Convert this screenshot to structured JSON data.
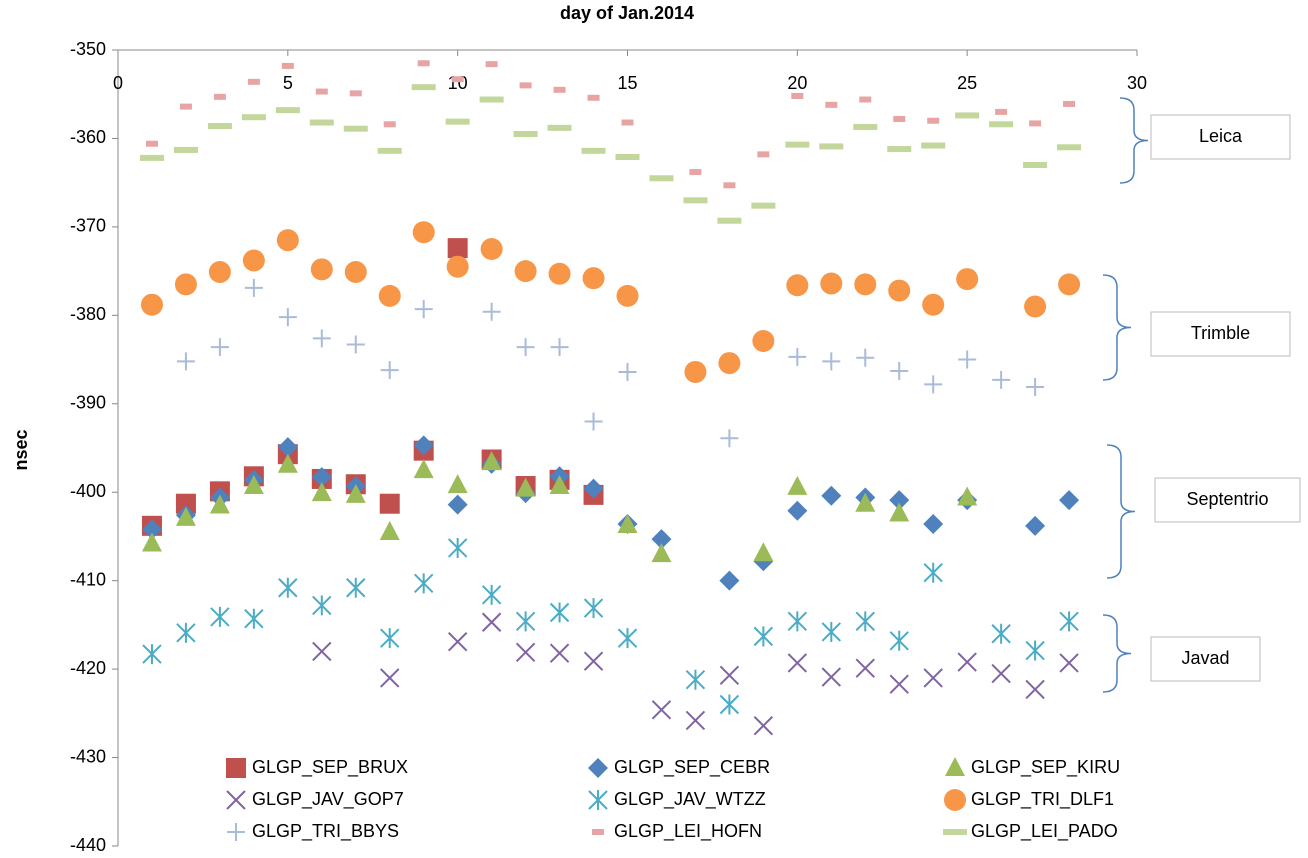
{
  "chart_data": {
    "type": "scatter",
    "title": "day of Jan.2014",
    "y_label": "nsec",
    "x": [
      1,
      2,
      3,
      4,
      5,
      6,
      7,
      8,
      9,
      10,
      11,
      12,
      13,
      14,
      15,
      16,
      17,
      18,
      19,
      20,
      21,
      22,
      23,
      24,
      25,
      26,
      27,
      28
    ],
    "xlim": [
      0,
      30
    ],
    "xticks": [
      0,
      5,
      10,
      15,
      20,
      25,
      30
    ],
    "ylim": [
      -440,
      -350
    ],
    "yticks": [
      -440,
      -430,
      -420,
      -410,
      -400,
      -390,
      -380,
      -370,
      -360,
      -350
    ],
    "grid": false,
    "legend": "bottom",
    "series": [
      {
        "name": "GLGP_SEP_BRUX",
        "color": "#c0504d",
        "marker": "square",
        "values": [
          -403.8,
          -401.3,
          -399.9,
          -398.2,
          -395.7,
          -398.5,
          -399.1,
          -401.3,
          -395.3,
          -372.4,
          -396.3,
          -399.3,
          -398.6,
          -400.3,
          null,
          null,
          null,
          null,
          null,
          null,
          null,
          null,
          null,
          null,
          null,
          null,
          null,
          null
        ]
      },
      {
        "name": "GLGP_SEP_CEBR",
        "color": "#4f81bd",
        "marker": "diamond",
        "values": [
          -404.2,
          -402.6,
          -400.6,
          -398.6,
          -394.9,
          -398.3,
          -399.3,
          null,
          -394.7,
          -401.4,
          -396.8,
          -400.1,
          -398.2,
          -399.6,
          -403.6,
          -405.3,
          null,
          -410.0,
          -407.8,
          -402.1,
          -400.4,
          -400.6,
          -400.9,
          -403.6,
          -400.9,
          null,
          -403.8,
          -400.9
        ]
      },
      {
        "name": "GLGP_SEP_KIRU",
        "color": "#9bbb59",
        "marker": "triangle",
        "values": [
          -405.8,
          -402.9,
          -401.5,
          -399.3,
          -396.9,
          -400.1,
          -400.3,
          -404.5,
          -397.5,
          -399.2,
          -396.6,
          -399.6,
          -399.3,
          null,
          -403.7,
          -407.0,
          null,
          null,
          -406.9,
          -399.4,
          null,
          -401.3,
          -402.4,
          null,
          -400.6,
          null,
          null,
          null
        ]
      },
      {
        "name": "GLGP_JAV_GOP7",
        "color": "#8064a2",
        "marker": "x",
        "values": [
          null,
          null,
          null,
          null,
          null,
          -418.0,
          null,
          -421.0,
          null,
          -416.9,
          -414.7,
          -418.1,
          -418.2,
          -419.1,
          null,
          -424.6,
          -425.8,
          -420.7,
          -426.4,
          -419.3,
          -420.9,
          -419.9,
          -421.7,
          -421.0,
          -419.2,
          -420.5,
          -422.3,
          -419.3
        ]
      },
      {
        "name": "GLGP_JAV_WTZZ",
        "color": "#4bacc6",
        "marker": "star",
        "values": [
          -418.3,
          -415.9,
          -414.1,
          -414.3,
          -410.8,
          -412.8,
          -410.8,
          -416.5,
          -410.3,
          -406.3,
          -411.6,
          -414.6,
          -413.6,
          -413.1,
          -416.5,
          null,
          -421.2,
          -424.0,
          -416.3,
          -414.6,
          -415.8,
          -414.6,
          -416.8,
          -409.1,
          null,
          -416.0,
          -417.9,
          -414.6
        ]
      },
      {
        "name": "GLGP_TRI_DLF1",
        "color": "#f79646",
        "marker": "circle",
        "values": [
          -378.8,
          -376.5,
          -375.1,
          -373.8,
          -371.5,
          -374.8,
          -375.1,
          -377.8,
          -370.6,
          -374.5,
          -372.5,
          -375.0,
          -375.3,
          -375.8,
          -377.8,
          null,
          -386.4,
          -385.4,
          -382.9,
          -376.6,
          -376.4,
          -376.5,
          -377.2,
          -378.8,
          -375.9,
          null,
          -379.0,
          -376.5
        ]
      },
      {
        "name": "GLGP_TRI_BBYS",
        "color": "#a9bbd9",
        "marker": "plus",
        "values": [
          null,
          -385.2,
          -383.6,
          -376.9,
          -380.2,
          -382.6,
          -383.3,
          -386.2,
          -379.3,
          null,
          -379.6,
          -383.6,
          -383.6,
          -392.0,
          -386.4,
          null,
          null,
          -393.9,
          null,
          -384.7,
          -385.2,
          -384.8,
          -386.3,
          -387.8,
          -385.0,
          -387.3,
          -388.1,
          null
        ]
      },
      {
        "name": "GLGP_LEI_HOFN",
        "color": "#e6a5a4",
        "marker": "dash",
        "values": [
          -360.6,
          -356.4,
          -355.3,
          -353.6,
          -351.8,
          -354.7,
          -354.9,
          -358.4,
          -351.5,
          -353.3,
          -351.6,
          -354.0,
          -354.5,
          -355.4,
          -358.2,
          null,
          -363.8,
          -365.3,
          -361.8,
          -355.2,
          -356.2,
          -355.6,
          -357.8,
          -358.0,
          null,
          -357.0,
          -358.3,
          -356.1
        ]
      },
      {
        "name": "GLGP_LEI_PADO",
        "color": "#c3d69b",
        "marker": "longdash",
        "values": [
          -362.2,
          -361.3,
          -358.6,
          -357.6,
          -356.8,
          -358.2,
          -358.9,
          -361.4,
          -354.2,
          -358.1,
          -355.6,
          -359.5,
          -358.8,
          -361.4,
          -362.1,
          -364.5,
          -367.0,
          -369.3,
          -367.6,
          -360.7,
          -360.9,
          -358.7,
          -361.2,
          -360.8,
          -357.4,
          -358.4,
          -363.0,
          -361.0
        ]
      }
    ],
    "annotations": [
      "Leica",
      "Trimble",
      "Septentrio",
      "Javad"
    ]
  }
}
